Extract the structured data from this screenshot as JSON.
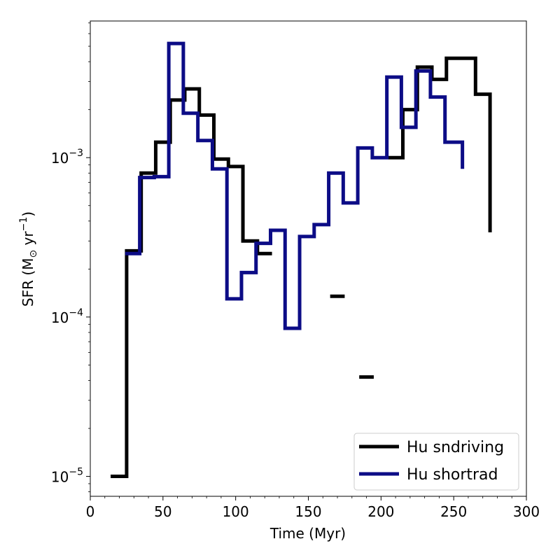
{
  "chart_data": {
    "type": "line",
    "step": "post",
    "xlabel": "Time (Myr)",
    "ylabel_main": "SFR (M",
    "ylabel_sub": "⊙",
    "ylabel_mid": " yr",
    "ylabel_sup": "−1",
    "ylabel_end": ")",
    "x_range": [
      0,
      300
    ],
    "y_range": [
      7.5e-06,
      0.0072
    ],
    "y_scale": "log",
    "x_ticks": [
      0,
      50,
      100,
      150,
      200,
      250,
      300
    ],
    "x_tick_labels": [
      "0",
      "50",
      "100",
      "150",
      "200",
      "250",
      "300"
    ],
    "y_ticks": [
      {
        "value": 1e-05,
        "base": "10",
        "exp": "−5"
      },
      {
        "value": 0.0001,
        "base": "10",
        "exp": "−4"
      },
      {
        "value": 0.001,
        "base": "10",
        "exp": "−3"
      }
    ],
    "legend_position": "lower-right",
    "grid": false,
    "series": [
      {
        "name": "Hu sndriving",
        "color": "#000000",
        "segments": [
          {
            "x": [
              14,
              25,
              35,
              45,
              55,
              65,
              75,
              85,
              95,
              105,
              115,
              125
            ],
            "y": [
              1e-05,
              0.00026,
              0.0008,
              0.00125,
              0.0023,
              0.0027,
              0.00185,
              0.00098,
              0.00088,
              0.0003,
              0.00025,
              0.00025
            ]
          },
          {
            "x": [
              165,
              175
            ],
            "y": [
              0.000135,
              0.000135
            ]
          },
          {
            "x": [
              185,
              195
            ],
            "y": [
              4.2e-05,
              4.2e-05
            ]
          },
          {
            "x": [
              205,
              215,
              225,
              235,
              245,
              255,
              265,
              275,
              275
            ],
            "y": [
              0.001,
              0.002,
              0.0037,
              0.0031,
              0.0042,
              0.0042,
              0.0025,
              0.0025,
              0.00034
            ]
          }
        ]
      },
      {
        "name": "Hu shortrad",
        "color": "#0c0c86",
        "segments": [
          {
            "x": [
              24,
              34,
              44,
              54,
              64,
              74,
              84,
              94,
              104,
              114,
              124,
              134,
              144,
              154,
              164,
              174,
              184,
              194,
              204,
              214,
              224,
              234,
              244,
              256,
              256
            ],
            "y": [
              0.00025,
              0.00075,
              0.00076,
              0.0052,
              0.0019,
              0.00128,
              0.00085,
              0.00013,
              0.00019,
              0.00029,
              0.00035,
              8.5e-05,
              0.00032,
              0.00038,
              0.0008,
              0.00052,
              0.00115,
              0.001,
              0.0032,
              0.00155,
              0.0035,
              0.0024,
              0.00125,
              0.00125,
              0.00085
            ]
          }
        ]
      }
    ]
  }
}
